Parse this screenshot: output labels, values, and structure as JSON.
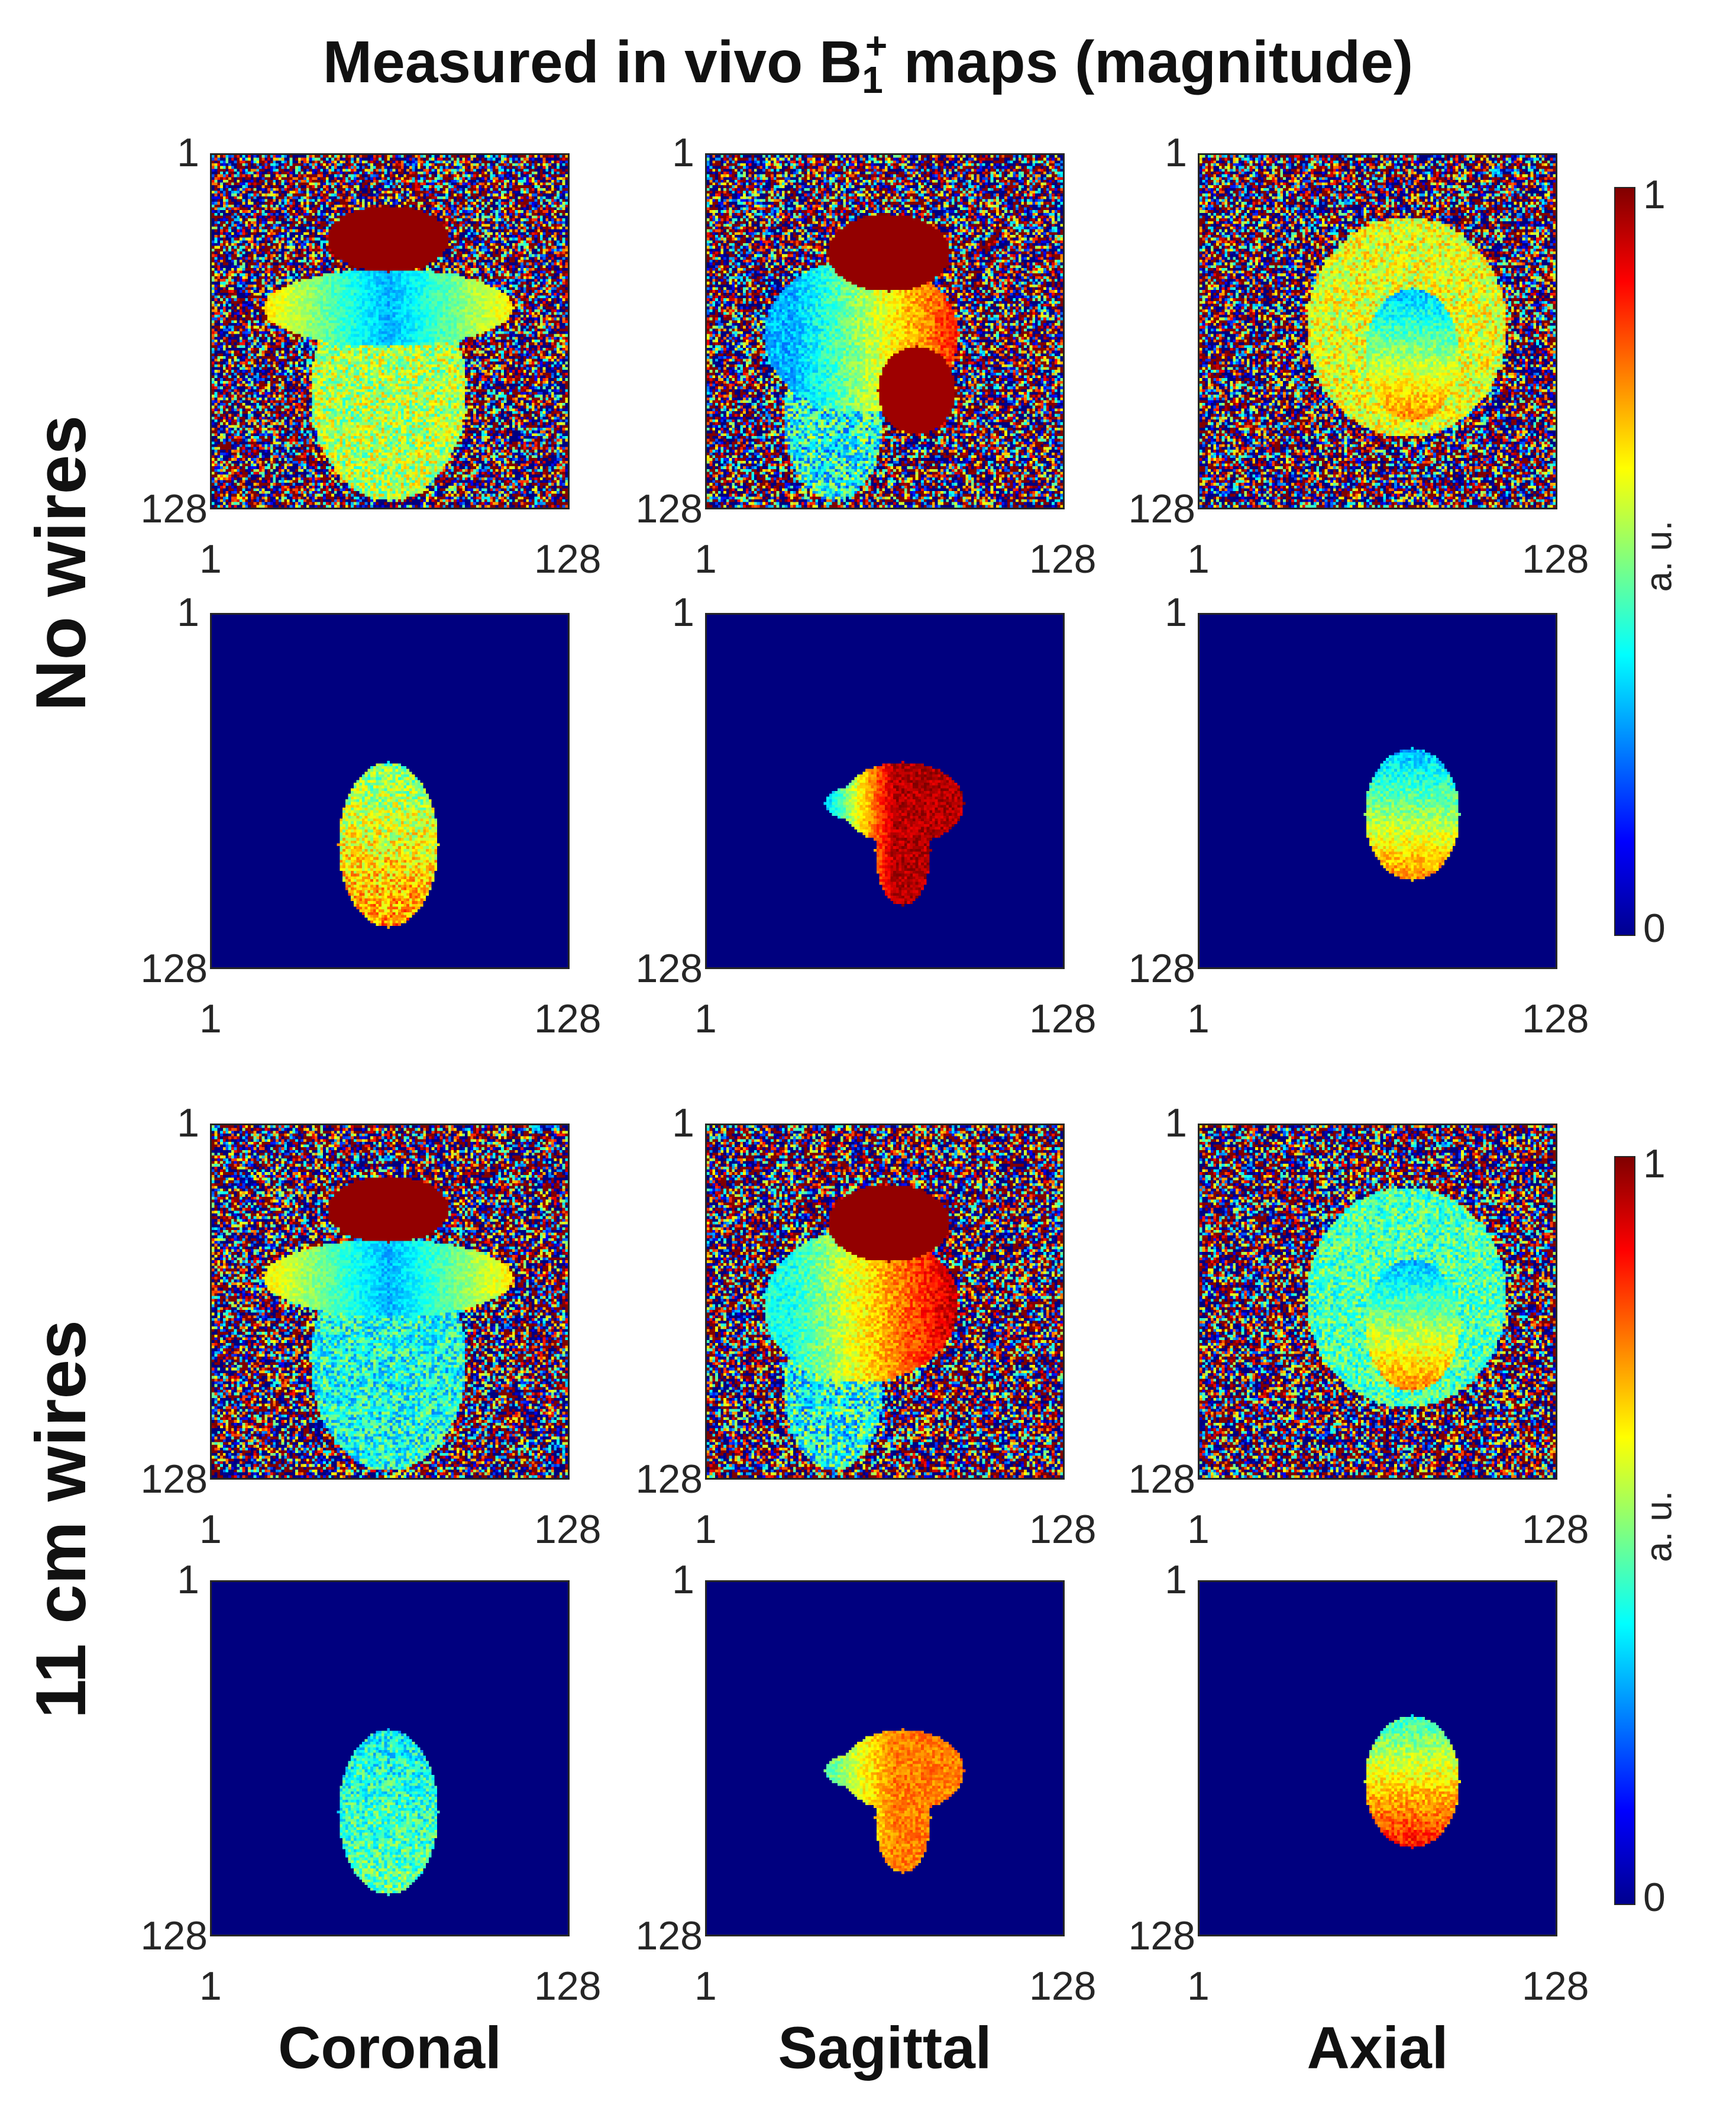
{
  "chart_data": {
    "type": "heatmap",
    "title_parts": {
      "main": "Measured in vivo B",
      "sub": "1",
      "sup": "+",
      "rest": " maps (magnitude)"
    },
    "rows": [
      {
        "label": "No wires"
      },
      {
        "label": "11 cm wires"
      }
    ],
    "columns": [
      "Coronal",
      "Sagittal",
      "Axial"
    ],
    "x_ticks": [
      "1",
      "128"
    ],
    "y_ticks": [
      "1",
      "128"
    ],
    "colorbar": {
      "label": "a. u.",
      "ticks": [
        "0",
        "1"
      ]
    }
  }
}
